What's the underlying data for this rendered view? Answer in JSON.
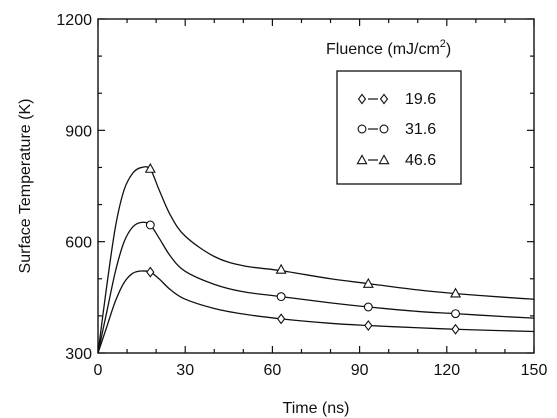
{
  "chart_data": {
    "type": "line",
    "title": "",
    "xlabel": "Time (ns)",
    "ylabel": "Surface Temperature (K)",
    "xlim": [
      0,
      150
    ],
    "ylim": [
      300,
      1200
    ],
    "xticks": [
      0,
      30,
      60,
      90,
      120,
      150
    ],
    "yticks": [
      300,
      600,
      900,
      1200
    ],
    "grid": false,
    "legend": {
      "title": "Fluence (mJ/cm",
      "title_sup": "2",
      "title_close": ")",
      "placement": "top-right"
    },
    "series": [
      {
        "name": "19.6",
        "marker": "diamond",
        "curve_x": [
          0,
          3,
          6,
          9,
          12,
          15,
          18,
          21,
          25,
          30,
          40,
          50,
          63,
          80,
          93,
          110,
          123,
          140,
          150
        ],
        "curve_y": [
          300,
          370,
          440,
          490,
          515,
          521,
          518,
          500,
          470,
          445,
          420,
          405,
          392,
          380,
          374,
          368,
          364,
          360,
          358
        ],
        "markers_x": [
          18,
          63,
          93,
          123
        ],
        "markers_y": [
          518,
          392,
          374,
          364
        ]
      },
      {
        "name": "31.6",
        "marker": "circle",
        "curve_x": [
          0,
          3,
          6,
          9,
          12,
          15,
          18,
          21,
          25,
          30,
          40,
          50,
          63,
          80,
          93,
          110,
          123,
          140,
          150
        ],
        "curve_y": [
          300,
          410,
          520,
          600,
          640,
          652,
          645,
          610,
          560,
          520,
          485,
          465,
          452,
          435,
          424,
          412,
          406,
          398,
          394
        ],
        "markers_x": [
          18,
          63,
          93,
          123
        ],
        "markers_y": [
          645,
          452,
          424,
          406
        ]
      },
      {
        "name": "46.6",
        "marker": "triangle",
        "curve_x": [
          0,
          3,
          6,
          9,
          12,
          15,
          18,
          21,
          25,
          30,
          40,
          50,
          63,
          80,
          93,
          110,
          123,
          140,
          150
        ],
        "curve_y": [
          300,
          480,
          640,
          740,
          785,
          800,
          795,
          740,
          670,
          615,
          560,
          535,
          522,
          500,
          487,
          470,
          460,
          450,
          445
        ],
        "markers_x": [
          18,
          63,
          93,
          123
        ],
        "markers_y": [
          797,
          525,
          487,
          461
        ]
      }
    ]
  },
  "colors": {
    "ink": "#111111",
    "background": "#ffffff"
  }
}
